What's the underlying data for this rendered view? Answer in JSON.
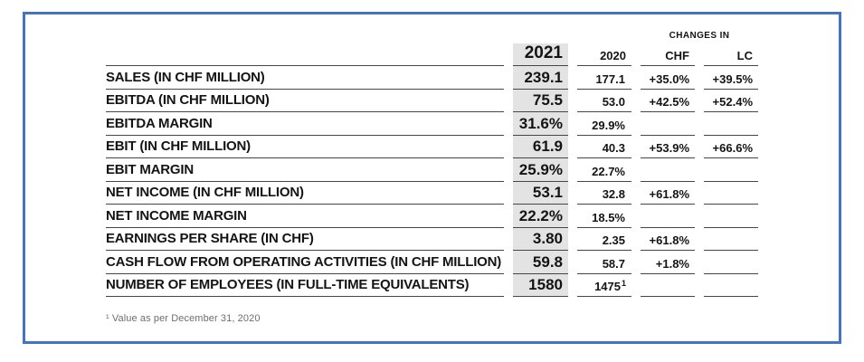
{
  "frame": {
    "border_color": "#4374c1"
  },
  "table": {
    "header": {
      "changes_in": "CHANGES IN",
      "columns": [
        "2021",
        "2020",
        "CHF",
        "LC"
      ]
    },
    "rows": [
      {
        "label": "SALES (IN CHF MILLION)",
        "y2021": "239.1",
        "y2020": "177.1",
        "sup": "",
        "chf": "+35.0%",
        "lc": "+39.5%"
      },
      {
        "label": "EBITDA (IN CHF MILLION)",
        "y2021": "75.5",
        "y2020": "53.0",
        "sup": "",
        "chf": "+42.5%",
        "lc": "+52.4%"
      },
      {
        "label": "EBITDA MARGIN",
        "y2021": "31.6%",
        "y2020": "29.9%",
        "sup": "",
        "chf": "",
        "lc": ""
      },
      {
        "label": "EBIT (IN CHF MILLION)",
        "y2021": "61.9",
        "y2020": "40.3",
        "sup": "",
        "chf": "+53.9%",
        "lc": "+66.6%"
      },
      {
        "label": "EBIT MARGIN",
        "y2021": "25.9%",
        "y2020": "22.7%",
        "sup": "",
        "chf": "",
        "lc": ""
      },
      {
        "label": "NET INCOME (IN CHF MILLION)",
        "y2021": "53.1",
        "y2020": "32.8",
        "sup": "",
        "chf": "+61.8%",
        "lc": ""
      },
      {
        "label": "NET INCOME MARGIN",
        "y2021": "22.2%",
        "y2020": "18.5%",
        "sup": "",
        "chf": "",
        "lc": ""
      },
      {
        "label": "EARNINGS PER SHARE (IN CHF)",
        "y2021": "3.80",
        "y2020": "2.35",
        "sup": "",
        "chf": "+61.8%",
        "lc": ""
      },
      {
        "label": "CASH FLOW FROM OPERATING ACTIVITIES (IN CHF MILLION)",
        "y2021": "59.8",
        "y2020": "58.7",
        "sup": "",
        "chf": "+1.8%",
        "lc": ""
      },
      {
        "label": "NUMBER OF EMPLOYEES (IN FULL-TIME EQUIVALENTS)",
        "y2021": "1580",
        "y2020": "1475",
        "sup": "1",
        "chf": "",
        "lc": ""
      }
    ],
    "footnote": "¹ Value as per December 31, 2020"
  }
}
